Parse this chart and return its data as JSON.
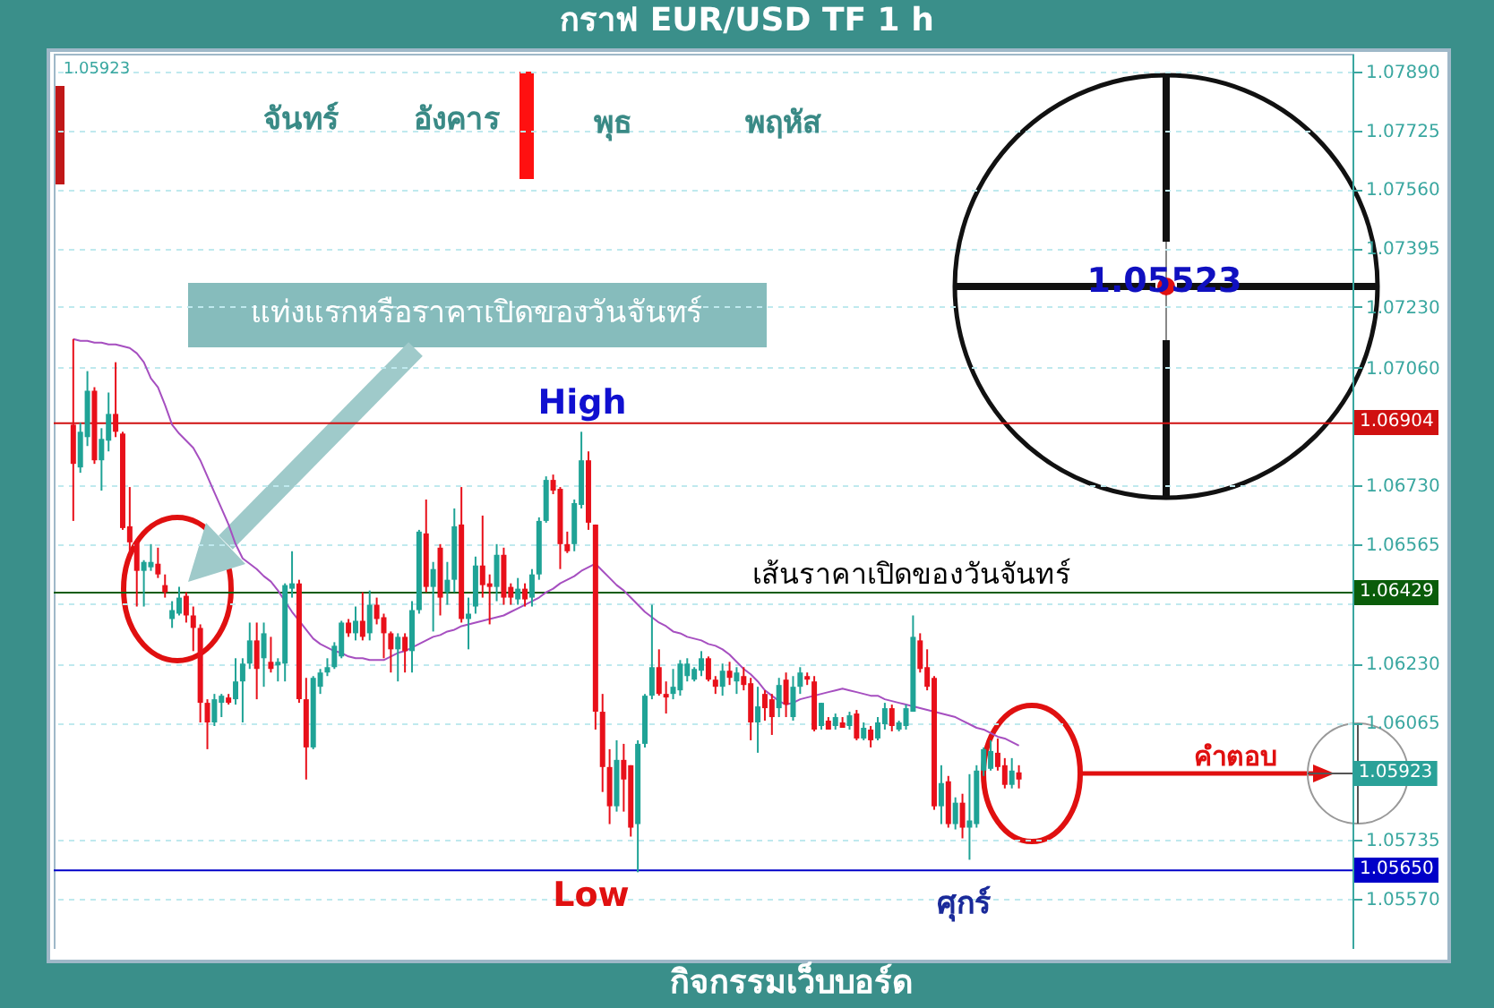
{
  "chart_data": {
    "type": "candlestick",
    "title": "กราฟ EUR/USD  TF 1 h",
    "annotations": [
      "จันทร์",
      "อังคาร",
      "พุธ",
      "พฤหัส",
      "ศุกร์",
      "High",
      "Low",
      "แท่งแรกหรือราคาเปิดของวันจันทร์",
      "เส้นราคาเปิดของวันจันทร์",
      "คำตอบ",
      "1.05523",
      "1.05923",
      "กิจกรรมเว็บบอร์ด",
      "1.05923"
    ],
    "categories": [
      null,
      null,
      null,
      null,
      null,
      null,
      null,
      null,
      null,
      null,
      null,
      null,
      null,
      null,
      null,
      null,
      null,
      null,
      null,
      null,
      null,
      null,
      null,
      null,
      null,
      null,
      null,
      null,
      null,
      null,
      null,
      null,
      null,
      null,
      null,
      null,
      null,
      null,
      null,
      null,
      null,
      null,
      null,
      null,
      null,
      null,
      null,
      null,
      null,
      null,
      null,
      null,
      null,
      null,
      null,
      null,
      null,
      null,
      null,
      null,
      null,
      null,
      null,
      null,
      null,
      null,
      null,
      null,
      null,
      null,
      null,
      null,
      null,
      null,
      null,
      null,
      null,
      null,
      null,
      null,
      null,
      null,
      null,
      null,
      null,
      null,
      null,
      null,
      null,
      null,
      null,
      null,
      null,
      null,
      null,
      null,
      null,
      null,
      null,
      null,
      null,
      null,
      null,
      null,
      null,
      null,
      null,
      null,
      null,
      null,
      null,
      null,
      null,
      null,
      null,
      null,
      null,
      null,
      null,
      null,
      null,
      null,
      null,
      null,
      null,
      null,
      null,
      null,
      null,
      null,
      null,
      null,
      null,
      null,
      null
    ],
    "ohlc": [
      [
        1.069,
        1.0714,
        1.0663,
        1.0679
      ],
      [
        1.0678,
        1.06905,
        1.06765,
        1.0688
      ],
      [
        1.06865,
        1.0705,
        1.0684,
        1.06995
      ],
      [
        1.06995,
        1.07005,
        1.0679,
        1.068
      ],
      [
        1.068,
        1.0689,
        1.06715,
        1.0686
      ],
      [
        1.06855,
        1.0699,
        1.06825,
        1.0693
      ],
      [
        1.0693,
        1.07075,
        1.06865,
        1.0688
      ],
      [
        1.06875,
        1.0688,
        1.06605,
        1.0661
      ],
      [
        1.06615,
        1.06725,
        1.0653,
        1.0657
      ],
      [
        1.0657,
        1.0658,
        1.0639,
        1.0649
      ],
      [
        1.0649,
        1.0652,
        1.0639,
        1.06515
      ],
      [
        1.065,
        1.06565,
        1.0649,
        1.06515
      ],
      [
        1.0651,
        1.06555,
        1.0647,
        1.0648
      ],
      [
        1.0645,
        1.0648,
        1.06415,
        1.0643
      ],
      [
        1.06355,
        1.06405,
        1.0633,
        1.0638
      ],
      [
        1.0637,
        1.06445,
        1.06365,
        1.06415
      ],
      [
        1.0642,
        1.0643,
        1.06345,
        1.06365
      ],
      [
        1.06365,
        1.0639,
        1.06265,
        1.0633
      ],
      [
        1.0633,
        1.0634,
        1.06065,
        1.0612
      ],
      [
        1.0612,
        1.0613,
        1.0599,
        1.06065
      ],
      [
        1.06065,
        1.06145,
        1.06055,
        1.0613
      ],
      [
        1.0612,
        1.06145,
        1.0608,
        1.0614
      ],
      [
        1.06135,
        1.06145,
        1.06115,
        1.0612
      ],
      [
        1.0613,
        1.06245,
        1.06115,
        1.0618
      ],
      [
        1.0618,
        1.06245,
        1.06065,
        1.0623
      ],
      [
        1.0623,
        1.06345,
        1.06215,
        1.06295
      ],
      [
        1.06295,
        1.06345,
        1.0613,
        1.06215
      ],
      [
        1.06245,
        1.06345,
        1.06165,
        1.06315
      ],
      [
        1.06235,
        1.06305,
        1.06205,
        1.06215
      ],
      [
        1.06225,
        1.06245,
        1.0618,
        1.06235
      ],
      [
        1.0623,
        1.06455,
        1.0618,
        1.0645
      ],
      [
        1.0644,
        1.06545,
        1.06415,
        1.06455
      ],
      [
        1.06455,
        1.06465,
        1.0612,
        1.0613
      ],
      [
        1.0613,
        1.0619,
        1.05905,
        1.05995
      ],
      [
        1.05995,
        1.06195,
        1.0599,
        1.0619
      ],
      [
        1.06165,
        1.06215,
        1.06145,
        1.06205
      ],
      [
        1.06205,
        1.06245,
        1.06195,
        1.0622
      ],
      [
        1.0622,
        1.0629,
        1.06215,
        1.0628
      ],
      [
        1.0625,
        1.0635,
        1.06245,
        1.06345
      ],
      [
        1.06345,
        1.06355,
        1.06305,
        1.06315
      ],
      [
        1.06315,
        1.0639,
        1.06295,
        1.0635
      ],
      [
        1.0635,
        1.0643,
        1.06295,
        1.06305
      ],
      [
        1.06315,
        1.06435,
        1.06295,
        1.06395
      ],
      [
        1.06395,
        1.06415,
        1.0634,
        1.06355
      ],
      [
        1.0636,
        1.0637,
        1.06245,
        1.06315
      ],
      [
        1.06315,
        1.0632,
        1.06205,
        1.0627
      ],
      [
        1.0627,
        1.06315,
        1.0618,
        1.06305
      ],
      [
        1.06305,
        1.06315,
        1.06205,
        1.06265
      ],
      [
        1.06265,
        1.06405,
        1.06205,
        1.0638
      ],
      [
        1.0638,
        1.06605,
        1.0637,
        1.066
      ],
      [
        1.06595,
        1.0669,
        1.0643,
        1.06445
      ],
      [
        1.06445,
        1.06515,
        1.0632,
        1.06495
      ],
      [
        1.06555,
        1.06565,
        1.06365,
        1.06415
      ],
      [
        1.0643,
        1.06515,
        1.06395,
        1.06465
      ],
      [
        1.06465,
        1.06665,
        1.0643,
        1.06615
      ],
      [
        1.0662,
        1.06725,
        1.06345,
        1.06355
      ],
      [
        1.06355,
        1.06415,
        1.0627,
        1.0637
      ],
      [
        1.0639,
        1.0653,
        1.0637,
        1.06505
      ],
      [
        1.06505,
        1.06645,
        1.06415,
        1.0645
      ],
      [
        1.06455,
        1.0648,
        1.0634,
        1.06445
      ],
      [
        1.06445,
        1.06565,
        1.06405,
        1.06535
      ],
      [
        1.06535,
        1.06555,
        1.06395,
        1.06415
      ],
      [
        1.06445,
        1.06455,
        1.06395,
        1.06415
      ],
      [
        1.0641,
        1.0647,
        1.06395,
        1.0644
      ],
      [
        1.0644,
        1.06455,
        1.0639,
        1.0641
      ],
      [
        1.06415,
        1.06495,
        1.0639,
        1.0648
      ],
      [
        1.0648,
        1.0664,
        1.06465,
        1.0663
      ],
      [
        1.0663,
        1.06755,
        1.06625,
        1.06745
      ],
      [
        1.06745,
        1.0676,
        1.06705,
        1.06715
      ],
      [
        1.0672,
        1.06725,
        1.06495,
        1.06565
      ],
      [
        1.06565,
        1.066,
        1.0654,
        1.06545
      ],
      [
        1.06565,
        1.0669,
        1.06545,
        1.0668
      ],
      [
        1.06675,
        1.0688,
        1.06665,
        1.068
      ],
      [
        1.068,
        1.06825,
        1.06605,
        1.06625
      ],
      [
        1.0662,
        1.0662,
        1.06045,
        1.06095
      ],
      [
        1.06095,
        1.06145,
        1.0587,
        1.0594
      ],
      [
        1.0594,
        1.0599,
        1.0578,
        1.0583
      ],
      [
        1.0583,
        1.06015,
        1.05815,
        1.0596
      ],
      [
        1.0596,
        1.06005,
        1.05815,
        1.05905
      ],
      [
        1.05945,
        1.05945,
        1.05745,
        1.0577
      ],
      [
        1.0578,
        1.06015,
        1.05645,
        1.06005
      ],
      [
        1.06005,
        1.06145,
        1.05995,
        1.0614
      ],
      [
        1.0614,
        1.06395,
        1.0613,
        1.0622
      ],
      [
        1.0622,
        1.0627,
        1.0614,
        1.06145
      ],
      [
        1.06145,
        1.0618,
        1.0609,
        1.06135
      ],
      [
        1.06145,
        1.06215,
        1.0613,
        1.06165
      ],
      [
        1.06155,
        1.0624,
        1.0614,
        1.0623
      ],
      [
        1.06195,
        1.06245,
        1.0618,
        1.0623
      ],
      [
        1.06185,
        1.0622,
        1.0618,
        1.06215
      ],
      [
        1.0621,
        1.06265,
        1.06195,
        1.06245
      ],
      [
        1.06245,
        1.0625,
        1.0618,
        1.06185
      ],
      [
        1.06185,
        1.06195,
        1.06145,
        1.06165
      ],
      [
        1.06165,
        1.0623,
        1.0614,
        1.0621
      ],
      [
        1.0621,
        1.06235,
        1.0617,
        1.0619
      ],
      [
        1.0618,
        1.0622,
        1.06145,
        1.06205
      ],
      [
        1.06195,
        1.0622,
        1.06155,
        1.0617
      ],
      [
        1.06175,
        1.0619,
        1.06015,
        1.06065
      ],
      [
        1.06065,
        1.06165,
        1.0598,
        1.0611
      ],
      [
        1.06145,
        1.06155,
        1.0607,
        1.06105
      ],
      [
        1.0613,
        1.06145,
        1.0603,
        1.0608
      ],
      [
        1.06105,
        1.0619,
        1.0608,
        1.0617
      ],
      [
        1.06185,
        1.06205,
        1.0608,
        1.06115
      ],
      [
        1.0608,
        1.06195,
        1.0607,
        1.06165
      ],
      [
        1.06165,
        1.0622,
        1.06145,
        1.06205
      ],
      [
        1.06195,
        1.06205,
        1.0617,
        1.06185
      ],
      [
        1.0618,
        1.06195,
        1.0604,
        1.06045
      ],
      [
        1.06055,
        1.0612,
        1.06045,
        1.0612
      ],
      [
        1.0607,
        1.0608,
        1.06045,
        1.06045
      ],
      [
        1.06055,
        1.0609,
        1.06045,
        1.0608
      ],
      [
        1.06065,
        1.0608,
        1.0605,
        1.0605
      ],
      [
        1.06055,
        1.06095,
        1.06045,
        1.06085
      ],
      [
        1.0609,
        1.061,
        1.06015,
        1.0602
      ],
      [
        1.0602,
        1.06065,
        1.06015,
        1.0605
      ],
      [
        1.06045,
        1.06055,
        1.05995,
        1.06015
      ],
      [
        1.0602,
        1.0608,
        1.06015,
        1.06065
      ],
      [
        1.0606,
        1.0612,
        1.06045,
        1.06105
      ],
      [
        1.06105,
        1.06115,
        1.0604,
        1.06055
      ],
      [
        1.06045,
        1.0607,
        1.0604,
        1.06065
      ],
      [
        1.06055,
        1.06115,
        1.06045,
        1.06105
      ],
      [
        1.06095,
        1.06365,
        1.06095,
        1.06305
      ],
      [
        1.06295,
        1.06315,
        1.06205,
        1.06215
      ],
      [
        1.0622,
        1.0627,
        1.06155,
        1.06165
      ],
      [
        1.0619,
        1.06195,
        1.0582,
        1.0583
      ],
      [
        1.0583,
        1.05945,
        1.0578,
        1.05895
      ],
      [
        1.059,
        1.05915,
        1.0577,
        1.0578
      ],
      [
        1.0578,
        1.05855,
        1.05765,
        1.0584
      ],
      [
        1.0584,
        1.05865,
        1.0574,
        1.0577
      ],
      [
        1.0577,
        1.0592,
        1.0568,
        1.0579
      ],
      [
        1.0578,
        1.05945,
        1.0577,
        1.0593
      ],
      [
        1.0593,
        1.05995,
        1.05915,
        1.0599
      ],
      [
        1.05935,
        1.06015,
        1.0593,
        1.05985
      ],
      [
        1.0598,
        1.0602,
        1.0593,
        1.0594
      ],
      [
        1.05945,
        1.05965,
        1.0588,
        1.0589
      ],
      [
        1.0589,
        1.05965,
        1.0588,
        1.0593
      ],
      [
        1.05925,
        1.05945,
        1.0588,
        1.05905
      ]
    ],
    "colors": [
      "#e8101a",
      "#1fa396",
      "#1fa396",
      "#e8101a",
      "#1fa396",
      "#1fa396",
      "#e8101a",
      "#e8101a",
      "#e8101a",
      "#e8101a",
      "#1fa396",
      "#1fa396",
      "#e8101a",
      "#e8101a",
      "#1fa396",
      "#1fa396",
      "#e8101a",
      "#e8101a",
      "#e8101a",
      "#e8101a",
      "#1fa396",
      "#1fa396",
      "#e8101a",
      "#1fa396",
      "#1fa396",
      "#1fa396",
      "#e8101a",
      "#1fa396",
      "#e8101a",
      "#1fa396",
      "#1fa396",
      "#1fa396",
      "#e8101a",
      "#e8101a",
      "#1fa396",
      "#1fa396",
      "#1fa396",
      "#1fa396",
      "#1fa396",
      "#e8101a",
      "#1fa396",
      "#e8101a",
      "#1fa396",
      "#e8101a",
      "#e8101a",
      "#e8101a",
      "#1fa396",
      "#e8101a",
      "#1fa396",
      "#1fa396",
      "#e8101a",
      "#1fa396",
      "#e8101a",
      "#1fa396",
      "#1fa396",
      "#e8101a",
      "#1fa396",
      "#1fa396",
      "#e8101a",
      "#e8101a",
      "#1fa396",
      "#e8101a",
      "#e8101a",
      "#1fa396",
      "#e8101a",
      "#1fa396",
      "#1fa396",
      "#1fa396",
      "#e8101a",
      "#e8101a",
      "#e8101a",
      "#1fa396",
      "#1fa396",
      "#e8101a",
      "#e8101a",
      "#e8101a",
      "#e8101a",
      "#1fa396",
      "#e8101a",
      "#e8101a",
      "#1fa396",
      "#1fa396",
      "#1fa396",
      "#e8101a",
      "#e8101a",
      "#1fa396",
      "#1fa396",
      "#1fa396",
      "#1fa396",
      "#1fa396",
      "#e8101a",
      "#e8101a",
      "#1fa396",
      "#e8101a",
      "#1fa396",
      "#e8101a",
      "#e8101a",
      "#1fa396",
      "#e8101a",
      "#e8101a",
      "#1fa396",
      "#e8101a",
      "#1fa396",
      "#1fa396",
      "#e8101a",
      "#e8101a",
      "#1fa396",
      "#e8101a",
      "#1fa396",
      "#e8101a",
      "#1fa396",
      "#e8101a",
      "#1fa396",
      "#e8101a",
      "#1fa396",
      "#1fa396",
      "#e8101a",
      "#1fa396",
      "#1fa396",
      "#1fa396",
      "#e8101a",
      "#e8101a",
      "#e8101a",
      "#1fa396",
      "#e8101a",
      "#1fa396",
      "#e8101a",
      "#1fa396",
      "#1fa396",
      "#1fa396",
      "#1fa396",
      "#e8101a",
      "#e8101a",
      "#1fa396",
      "#e8101a"
    ],
    "series": [
      {
        "type": "line",
        "color": "#a64fc0",
        "values": [
          1.0714,
          1.07135,
          1.07135,
          1.0713,
          1.0713,
          1.07125,
          1.07125,
          1.0712,
          1.07115,
          1.071,
          1.07075,
          1.0703,
          1.07005,
          1.06955,
          1.069,
          1.06875,
          1.06855,
          1.06835,
          1.068,
          1.06755,
          1.0671,
          1.06665,
          1.0662,
          1.06565,
          1.06525,
          1.0651,
          1.06495,
          1.06475,
          1.0646,
          1.06435,
          1.06405,
          1.06375,
          1.0635,
          1.06325,
          1.063,
          1.06285,
          1.06275,
          1.06265,
          1.0626,
          1.0625,
          1.06245,
          1.06245,
          1.0624,
          1.0624,
          1.0624,
          1.0625,
          1.0626,
          1.06265,
          1.06275,
          1.06285,
          1.06295,
          1.06305,
          1.0631,
          1.0632,
          1.06325,
          1.06335,
          1.0634,
          1.06345,
          1.0635,
          1.06355,
          1.0636,
          1.06365,
          1.06375,
          1.06385,
          1.06395,
          1.06405,
          1.06415,
          1.0643,
          1.0644,
          1.06455,
          1.06465,
          1.06475,
          1.0649,
          1.065,
          1.0651,
          1.0649,
          1.0647,
          1.0645,
          1.06435,
          1.06415,
          1.06395,
          1.06375,
          1.0636,
          1.06345,
          1.06335,
          1.0632,
          1.06315,
          1.06305,
          1.063,
          1.06295,
          1.06285,
          1.0628,
          1.0627,
          1.06255,
          1.06235,
          1.06215,
          1.062,
          1.0618,
          1.06155,
          1.0614,
          1.06125,
          1.06115,
          1.0612,
          1.0613,
          1.06135,
          1.0614,
          1.06145,
          1.0615,
          1.06155,
          1.0616,
          1.06155,
          1.0615,
          1.06145,
          1.0614,
          1.0614,
          1.0613,
          1.06125,
          1.0612,
          1.06115,
          1.0611,
          1.06105,
          1.061,
          1.06095,
          1.0609,
          1.06085,
          1.0608,
          1.0607,
          1.0606,
          1.0605,
          1.06045,
          1.06035,
          1.06025,
          1.0602,
          1.0601,
          1.06
        ]
      }
    ],
    "ylim": [
      1.0543,
      1.0794
    ],
    "yticks": [
      {
        "value": 1.0789,
        "label": "1.07890"
      },
      1.07725,
      {
        "value": 1.0756,
        "label": "1.07560"
      },
      1.07395,
      {
        "value": 1.0723,
        "label": "1.07230"
      },
      {
        "value": 1.0706,
        "label": "1.07060"
      },
      {
        "value": 1.0673,
        "label": "1.06730"
      },
      1.06565,
      {
        "value": 1.064,
        "label": null
      },
      {
        "value": 1.0623,
        "label": "1.06230"
      },
      1.06065,
      1.05735,
      {
        "value": 1.0557,
        "label": "1.05570"
      }
    ],
    "grid": "y",
    "tick_labels": "y",
    "ref_lines": [
      {
        "axis": "y",
        "value": 1.06904,
        "label": "1.06904",
        "color": "#d01010"
      },
      {
        "axis": "y",
        "value": 1.06429,
        "label": "1.06429",
        "color": "#0a5c0a"
      },
      {
        "axis": "y",
        "value": 1.0565,
        "label": "1.05650",
        "color": "#0000c8"
      }
    ]
  }
}
